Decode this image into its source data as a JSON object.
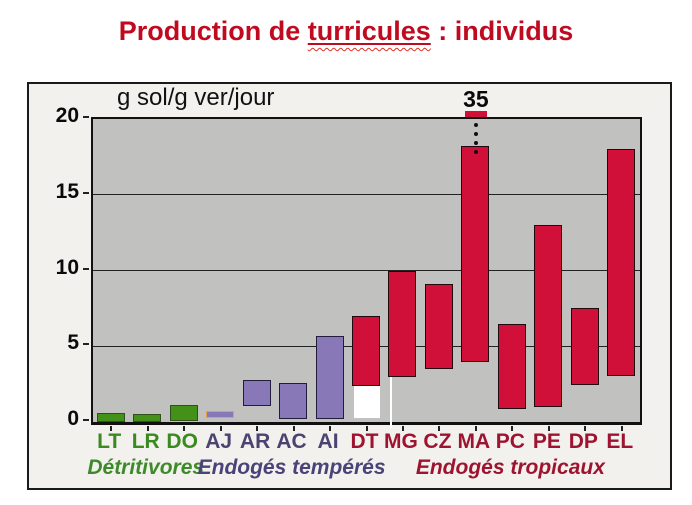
{
  "title": {
    "prefix": "Production de ",
    "underlined_word": "turricules",
    "suffix": " : individus",
    "color": "#c00a1f"
  },
  "chart_data": {
    "type": "bar",
    "subtype": "floating range bars (min-max per earthworm species)",
    "title": "Production de turricules : individus",
    "unit_label": "g sol/g ver/jour",
    "xlabel": "",
    "ylabel": "g sol/g ver/jour",
    "ylim": [
      0,
      20
    ],
    "yticks": [
      0,
      5,
      10,
      15,
      20
    ],
    "gridlines": [
      5,
      10,
      15,
      20
    ],
    "grid": "horizontal",
    "legend": "none",
    "categories": [
      "LT",
      "LR",
      "DO",
      "AJ",
      "AR",
      "AC",
      "AI",
      "DT",
      "MG",
      "CZ",
      "MA",
      "PC",
      "PE",
      "DP",
      "EL"
    ],
    "bars": [
      {
        "cat": "LT",
        "low": 0.1,
        "high": 0.6,
        "fill": "#44911a",
        "border": "#30501c",
        "label_color": "#3b8a20",
        "white_base": false
      },
      {
        "cat": "LR",
        "low": 0.1,
        "high": 0.55,
        "fill": "#44911a",
        "border": "#30501c",
        "label_color": "#3b8a20",
        "white_base": false
      },
      {
        "cat": "DO",
        "low": 0.2,
        "high": 1.1,
        "fill": "#44911a",
        "border": "#30501c",
        "label_color": "#3b8a20",
        "white_base": true
      },
      {
        "cat": "AJ",
        "low": 0.4,
        "high": 0.75,
        "fill": "#8878b8",
        "border": "#e8a040",
        "label_color": "#4c4470",
        "white_base": true
      },
      {
        "cat": "AR",
        "low": 1.2,
        "high": 2.75,
        "fill": "#8878b8",
        "border": "#221d3a",
        "label_color": "#4c4470",
        "white_base": false
      },
      {
        "cat": "AC",
        "low": 0.3,
        "high": 2.55,
        "fill": "#8878b8",
        "border": "#221d3a",
        "label_color": "#4c4470",
        "white_base": true
      },
      {
        "cat": "AI",
        "low": 0.3,
        "high": 5.65,
        "fill": "#8878b8",
        "border": "#221d3a",
        "label_color": "#4c4470",
        "white_base": true
      },
      {
        "cat": "DT",
        "low": 2.5,
        "high": 7.0,
        "fill": "#d01038",
        "border": "#20090f",
        "label_color": "#9e1430",
        "white_base": true
      },
      {
        "cat": "MG",
        "low": 3.1,
        "high": 10.0,
        "fill": "#d01038",
        "border": "#20090f",
        "label_color": "#9e1430",
        "white_base": false
      },
      {
        "cat": "CZ",
        "low": 3.6,
        "high": 9.1,
        "fill": "#d01038",
        "border": "#20090f",
        "label_color": "#9e1430",
        "white_base": false
      },
      {
        "cat": "MA",
        "low": 4.1,
        "high": 35,
        "display_high": 18.2,
        "clipped": true,
        "fill": "#d01038",
        "border": "#20090f",
        "label_color": "#9e1430",
        "white_base": false
      },
      {
        "cat": "PC",
        "low": 1.0,
        "high": 6.5,
        "fill": "#d01038",
        "border": "#20090f",
        "label_color": "#9e1430",
        "white_base": false
      },
      {
        "cat": "PE",
        "low": 1.1,
        "high": 13.0,
        "fill": "#d01038",
        "border": "#20090f",
        "label_color": "#9e1430",
        "white_base": false
      },
      {
        "cat": "DP",
        "low": 2.6,
        "high": 7.5,
        "fill": "#d01038",
        "border": "#20090f",
        "label_color": "#9e1430",
        "white_base": false
      },
      {
        "cat": "EL",
        "low": 3.2,
        "high": 18.0,
        "fill": "#d01038",
        "border": "#20090f",
        "label_color": "#9e1430",
        "white_base": false
      }
    ],
    "groups": [
      {
        "label": "Détritivores",
        "color": "#3e8a2a",
        "from": 0,
        "to": 2
      },
      {
        "label": "Endogés tempérés",
        "color": "#4a4378",
        "from": 3,
        "to": 7
      },
      {
        "label": "Endogés tropicaux",
        "color": "#9e1430",
        "from": 8,
        "to": 14
      }
    ],
    "separator_after_index": 7,
    "clip_annotation": {
      "category": "MA",
      "label": "35",
      "dots": 4,
      "note": "bar clipped at top of plot, true max = 35"
    }
  },
  "colors": {
    "plot_bg": "#c1c1c0",
    "frame_bg": "#f2f1ee",
    "axis": "#111111",
    "separator": "#ffffff"
  }
}
